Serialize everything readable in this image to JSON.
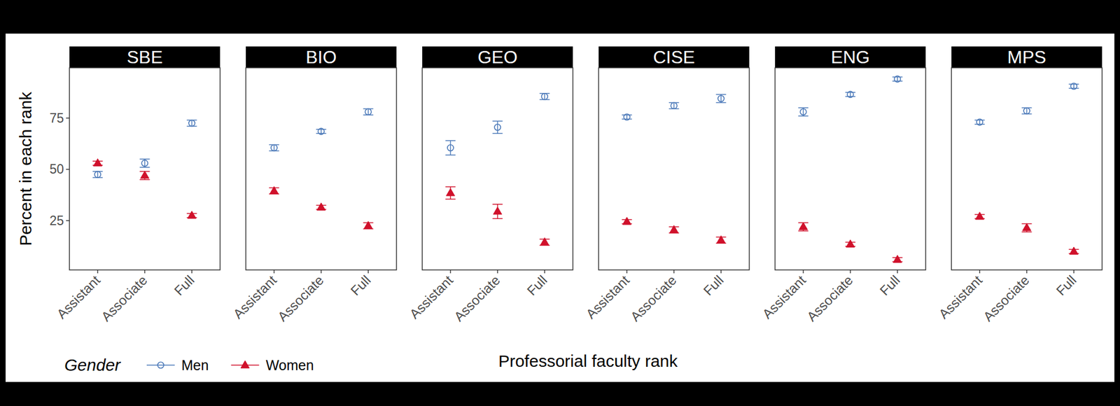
{
  "chart_data": {
    "type": "scatter",
    "y_label": "Percent in each rank",
    "x_label": "Professorial faculty rank",
    "legend_title": "Gender",
    "legend": "bottom-left",
    "grid": false,
    "categories": [
      "Assistant",
      "Associate",
      "Full"
    ],
    "ylim": [
      1,
      99.5
    ],
    "yticks": [
      25,
      50,
      75
    ],
    "series": [
      {
        "name": "Men",
        "color": "#4a78b8",
        "marker": "circle-open",
        "line_style": "solid"
      },
      {
        "name": "Women",
        "color": "#d0112b",
        "marker": "triangle",
        "line_style": "solid"
      }
    ],
    "panels": [
      {
        "title": "SBE",
        "values": [
          [
            47.5,
            53,
            72.5
          ],
          [
            53,
            47,
            27.5
          ]
        ],
        "errors": [
          [
            1.5,
            2,
            1.5
          ],
          [
            1,
            2,
            1
          ]
        ]
      },
      {
        "title": "BIO",
        "values": [
          [
            60.5,
            68.5,
            78
          ],
          [
            39.5,
            31.5,
            22.5
          ]
        ],
        "errors": [
          [
            1.5,
            1,
            1.5
          ],
          [
            1.5,
            1,
            1.5
          ]
        ]
      },
      {
        "title": "GEO",
        "values": [
          [
            60.5,
            70.5,
            85.5
          ],
          [
            38.5,
            29.5,
            14.5
          ]
        ],
        "errors": [
          [
            3.5,
            3,
            1.5
          ],
          [
            3,
            3.5,
            1.5
          ]
        ]
      },
      {
        "title": "CISE",
        "values": [
          [
            75.5,
            81,
            84.5
          ],
          [
            24.5,
            20.5,
            15.5
          ]
        ],
        "errors": [
          [
            1,
            1.5,
            2
          ],
          [
            1,
            1.5,
            1.5
          ]
        ]
      },
      {
        "title": "ENG",
        "values": [
          [
            78,
            86.5,
            94
          ],
          [
            22,
            13.5,
            6
          ]
        ],
        "errors": [
          [
            2,
            1,
            1
          ],
          [
            2,
            1,
            1
          ]
        ]
      },
      {
        "title": "MPS",
        "values": [
          [
            73,
            78.5,
            90.5
          ],
          [
            27,
            21.5,
            10
          ]
        ],
        "errors": [
          [
            1,
            1.5,
            1
          ],
          [
            1,
            2,
            1
          ]
        ]
      }
    ]
  }
}
